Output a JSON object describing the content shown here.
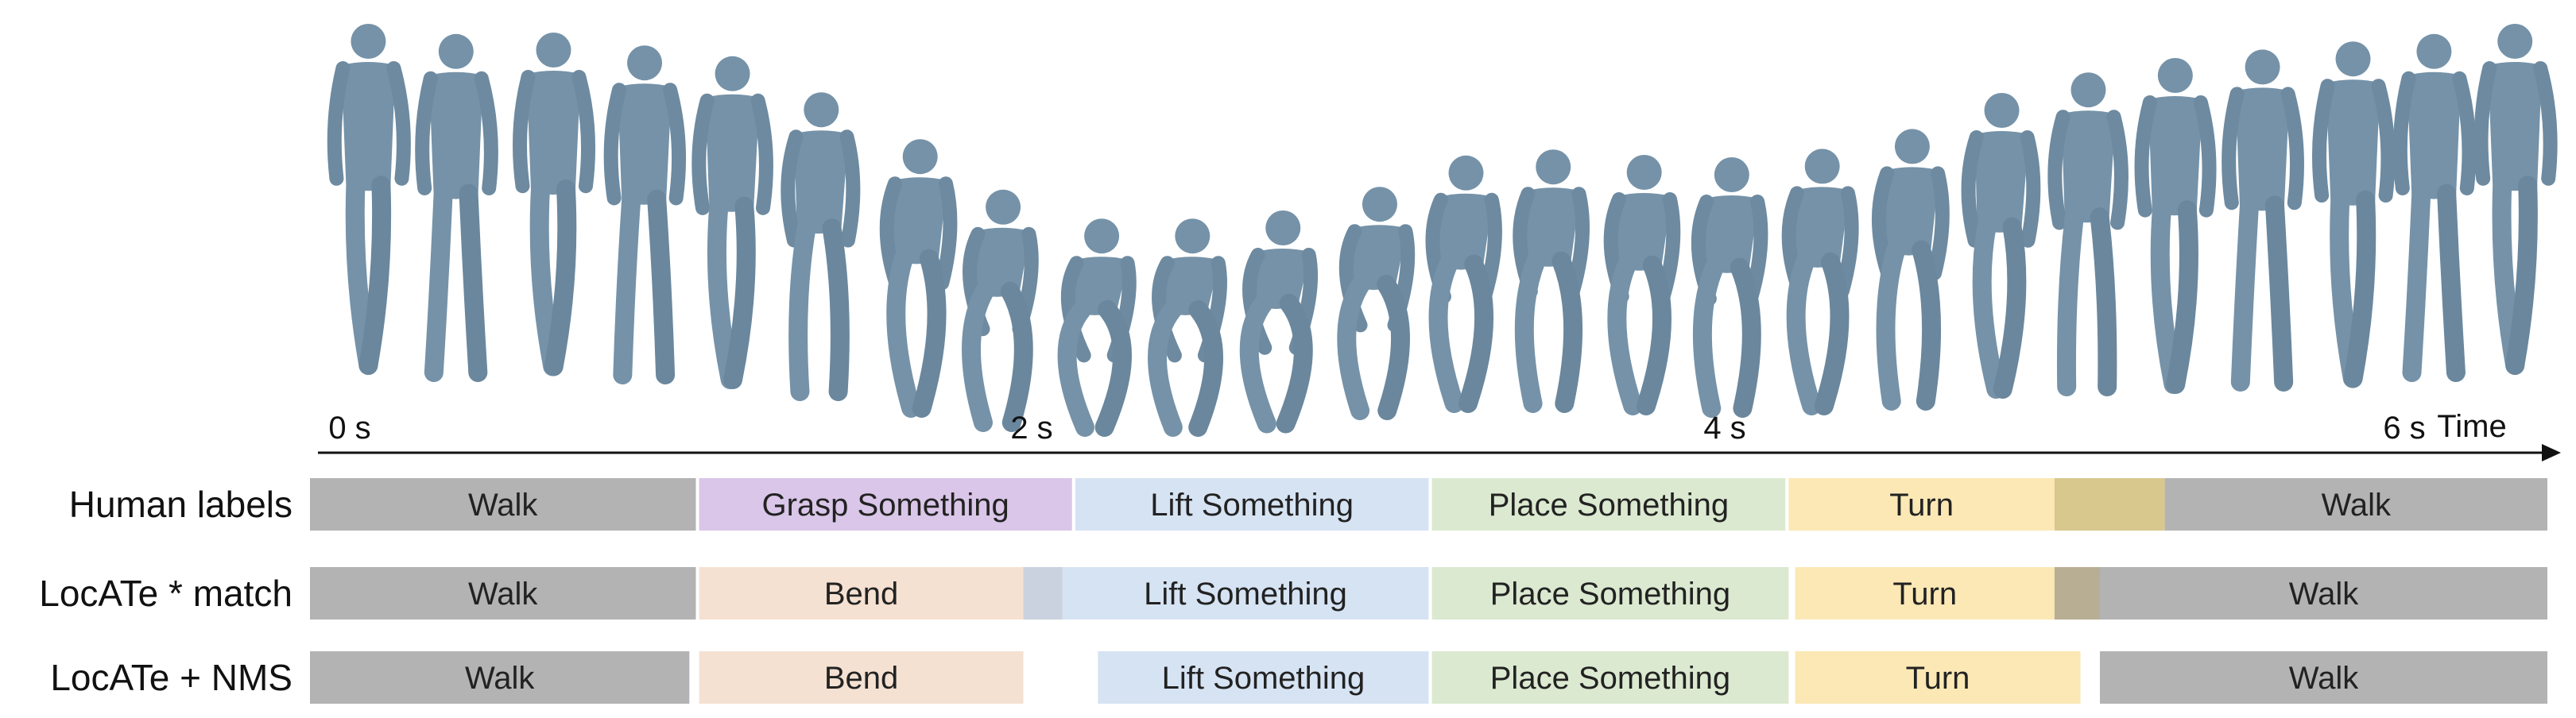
{
  "timeline": {
    "axis_title": "Time",
    "ticks": [
      {
        "t": 0,
        "label": "0 s"
      },
      {
        "t": 2,
        "label": "2 s"
      },
      {
        "t": 4,
        "label": "4 s"
      },
      {
        "t": 6,
        "label": "6 s"
      }
    ],
    "t_max": 6.9
  },
  "colors": {
    "Walk": "#b3b3b3",
    "Grasp Something": "#d9c6e8",
    "Bend": "#f5e1d2",
    "Lift Something": "#d6e3f3",
    "Place Something": "#dbe9d0",
    "Turn": "#fbe8b5",
    "TurnWalk overlap": "#d8c88e",
    "Bend/Lift overlap": "#c9d2de",
    "Turn/Walk overlap (pred)": "#b8ae93"
  },
  "rows": [
    {
      "label": "Human labels",
      "segments": [
        {
          "name": "Walk",
          "start": 0.0,
          "end": 1.19
        },
        {
          "name": "Grasp Something",
          "start": 1.2,
          "end": 2.35
        },
        {
          "name": "Lift Something",
          "start": 2.36,
          "end": 3.45
        },
        {
          "name": "Place Something",
          "start": 3.46,
          "end": 4.55
        },
        {
          "name": "Turn",
          "start": 4.56,
          "end": 5.38,
          "overlap_end": 5.72,
          "overlap_color": "TurnWalk overlap"
        },
        {
          "name": "Walk",
          "start": 5.72,
          "end": 6.9
        }
      ]
    },
    {
      "label": "LocATe * match",
      "segments": [
        {
          "name": "Bend",
          "start": 1.2,
          "end": 2.2,
          "overlap_end": 2.32,
          "overlap_color": "Bend/Lift overlap"
        },
        {
          "name": "Walk",
          "start": 0.0,
          "end": 1.19
        },
        {
          "name": "Lift Something",
          "start": 2.32,
          "end": 3.45
        },
        {
          "name": "Place Something",
          "start": 3.46,
          "end": 4.56
        },
        {
          "name": "Turn",
          "start": 4.58,
          "end": 5.38,
          "overlap_end": 5.52,
          "overlap_color": "Turn/Walk overlap (pred)"
        },
        {
          "name": "Walk",
          "start": 5.52,
          "end": 6.9
        }
      ]
    },
    {
      "label": "LocATe + NMS",
      "segments": [
        {
          "name": "Walk",
          "start": 0.0,
          "end": 1.17
        },
        {
          "name": "Bend",
          "start": 1.2,
          "end": 2.2
        },
        {
          "name": "Lift Something",
          "start": 2.43,
          "end": 3.45
        },
        {
          "name": "Place Something",
          "start": 3.46,
          "end": 4.56
        },
        {
          "name": "Turn",
          "start": 4.58,
          "end": 5.46
        },
        {
          "name": "Walk",
          "start": 5.52,
          "end": 6.9
        }
      ]
    }
  ],
  "poses": [
    {
      "t": 0.18,
      "h": 0.0,
      "crouch": 0.0
    },
    {
      "t": 0.45,
      "h": 0.04,
      "crouch": 0.02
    },
    {
      "t": 0.75,
      "h": 0.03,
      "crouch": 0.05
    },
    {
      "t": 1.03,
      "h": 0.08,
      "crouch": 0.08
    },
    {
      "t": 1.3,
      "h": 0.12,
      "crouch": 0.12
    },
    {
      "t": 1.57,
      "h": 0.25,
      "crouch": 0.28
    },
    {
      "t": 1.87,
      "h": 0.42,
      "crouch": 0.48
    },
    {
      "t": 2.12,
      "h": 0.6,
      "crouch": 0.72
    },
    {
      "t": 2.42,
      "h": 0.7,
      "crouch": 0.88
    },
    {
      "t": 2.7,
      "h": 0.7,
      "crouch": 0.88
    },
    {
      "t": 2.98,
      "h": 0.67,
      "crouch": 0.85
    },
    {
      "t": 3.28,
      "h": 0.58,
      "crouch": 0.78
    },
    {
      "t": 3.55,
      "h": 0.47,
      "crouch": 0.62
    },
    {
      "t": 3.82,
      "h": 0.45,
      "crouch": 0.58
    },
    {
      "t": 4.1,
      "h": 0.47,
      "crouch": 0.6
    },
    {
      "t": 4.37,
      "h": 0.48,
      "crouch": 0.6
    },
    {
      "t": 4.65,
      "h": 0.45,
      "crouch": 0.56
    },
    {
      "t": 4.93,
      "h": 0.38,
      "crouch": 0.46
    },
    {
      "t": 5.21,
      "h": 0.25,
      "crouch": 0.3
    },
    {
      "t": 5.48,
      "h": 0.18,
      "crouch": 0.18
    },
    {
      "t": 5.75,
      "h": 0.13,
      "crouch": 0.1
    },
    {
      "t": 6.02,
      "h": 0.1,
      "crouch": 0.06
    },
    {
      "t": 6.3,
      "h": 0.07,
      "crouch": 0.03
    },
    {
      "t": 6.55,
      "h": 0.04,
      "crouch": 0.02
    },
    {
      "t": 6.8,
      "h": 0.0,
      "crouch": 0.0
    }
  ]
}
